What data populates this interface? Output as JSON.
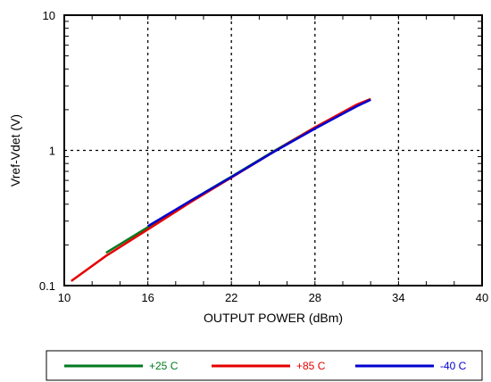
{
  "chart_data": {
    "type": "line",
    "title": "",
    "xlabel": "OUTPUT POWER  (dBm)",
    "ylabel": "Vref-Vdet (V)",
    "xlim": [
      10,
      40
    ],
    "ylim": [
      0.1,
      10
    ],
    "yscale": "log",
    "grid": true,
    "legend_position": "bottom",
    "x_ticks": [
      "10",
      "16",
      "22",
      "28",
      "34",
      "40"
    ],
    "y_ticks": [
      "0.1",
      "1",
      "10"
    ],
    "series": [
      {
        "name": "+25 C",
        "color": "#007a1e",
        "x": [
          13,
          16,
          19,
          22,
          25,
          28,
          31,
          32
        ],
        "y": [
          0.175,
          0.27,
          0.42,
          0.64,
          0.98,
          1.48,
          2.15,
          2.38
        ]
      },
      {
        "name": "+85 C",
        "color": "#e60000",
        "x": [
          10.5,
          13,
          16,
          19,
          22,
          25,
          28,
          31,
          32
        ],
        "y": [
          0.108,
          0.166,
          0.26,
          0.41,
          0.63,
          0.97,
          1.48,
          2.18,
          2.4
        ]
      },
      {
        "name": "-40 C",
        "color": "#0000d0",
        "x": [
          16,
          19,
          22,
          25,
          28,
          31,
          32
        ],
        "y": [
          0.275,
          0.42,
          0.635,
          0.97,
          1.45,
          2.12,
          2.37
        ]
      }
    ]
  }
}
